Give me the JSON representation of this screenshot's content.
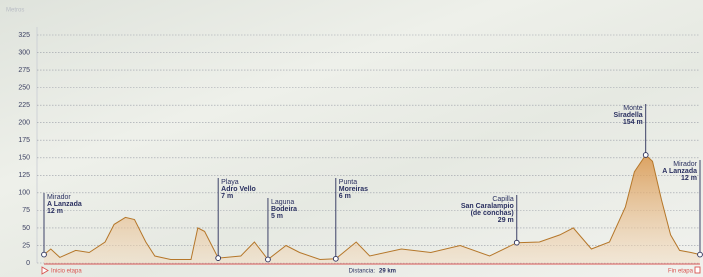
{
  "chart_data": {
    "type": "area",
    "y_label": "Metros",
    "x_label": "Distancia:",
    "distance": "29 km",
    "start_label": "Inicio etapa",
    "end_label": "Fin etapa",
    "x": [
      0,
      0.3,
      0.7,
      1.4,
      2.0,
      2.7,
      3.1,
      3.6,
      4.0,
      4.5,
      4.9,
      5.6,
      6.5,
      6.8,
      7.1,
      7.7,
      8.7,
      9.3,
      9.9,
      10.7,
      11.3,
      12.2,
      12.9,
      13.8,
      14.4,
      15.8,
      17.1,
      18.4,
      19.7,
      20.9,
      21.9,
      22.8,
      23.4,
      24.2,
      25.0,
      25.7,
      26.1,
      26.6,
      26.9,
      27.3,
      27.7,
      28.1,
      28.6,
      29.0
    ],
    "values": [
      12,
      20,
      8,
      18,
      15,
      30,
      55,
      65,
      62,
      30,
      10,
      5,
      5,
      50,
      45,
      7,
      10,
      30,
      5,
      25,
      15,
      5,
      6,
      30,
      10,
      20,
      15,
      25,
      10,
      29,
      30,
      40,
      50,
      20,
      30,
      80,
      130,
      154,
      145,
      90,
      40,
      18,
      15,
      12
    ],
    "color": "#b5772a",
    "xlim": [
      0,
      29
    ],
    "ylim": [
      0,
      325
    ],
    "yticks": [
      0,
      25,
      50,
      75,
      100,
      125,
      150,
      175,
      200,
      225,
      250,
      275,
      300,
      325
    ],
    "grid": true,
    "annotations": [
      {
        "x": 0,
        "value": 12,
        "value_label": "12 m",
        "label": "Mirador",
        "name": [
          "A Lanzada"
        ]
      },
      {
        "x": 7.7,
        "value": 7,
        "value_label": "7 m",
        "label": "Playa",
        "name": [
          "Adro Vello"
        ]
      },
      {
        "x": 9.9,
        "value": 5,
        "value_label": "5 m",
        "label": "Laguna",
        "name": [
          "Bodeira"
        ]
      },
      {
        "x": 12.9,
        "value": 6,
        "value_label": "6 m",
        "label": "Punta",
        "name": [
          "Moreiras"
        ]
      },
      {
        "x": 20.9,
        "value": 29,
        "value_label": "29 m",
        "label": "Capilla",
        "name": [
          "San Caralampio",
          "(de conchas)"
        ]
      },
      {
        "x": 26.6,
        "value": 154,
        "value_label": "154 m",
        "label": "Monte",
        "name": [
          "Siradella"
        ]
      },
      {
        "x": 29.0,
        "value": 12,
        "value_label": "12 m",
        "label": "Mirador",
        "name": [
          "A Lanzada"
        ]
      }
    ]
  }
}
